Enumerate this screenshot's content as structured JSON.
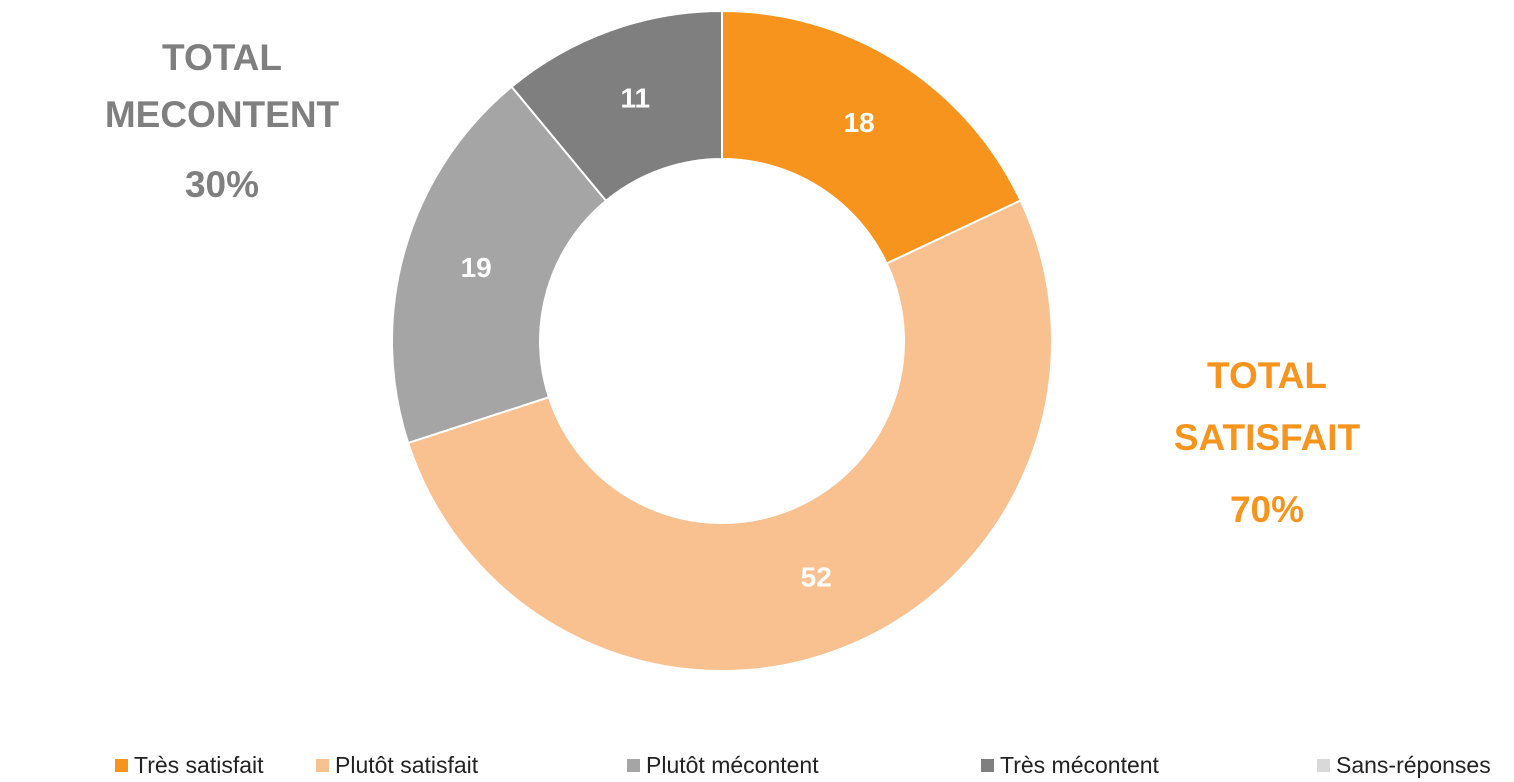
{
  "chart_data": {
    "type": "donut",
    "categories": [
      "Très satisfait",
      "Plutôt satisfait",
      "Plutôt mécontent",
      "Très mécontent",
      "Sans-réponses"
    ],
    "values": [
      18,
      52,
      19,
      11,
      0
    ],
    "colors": [
      "#f7941d",
      "#f9c090",
      "#a5a5a5",
      "#7f7f7f",
      "#d9d9d9"
    ],
    "legend": "bottom",
    "annotations": [
      {
        "lines": [
          "TOTAL",
          "MECONTENT",
          "30%"
        ],
        "color": "#7f7f7f"
      },
      {
        "lines": [
          "TOTAL",
          "SATISFAIT",
          "70%"
        ],
        "color": "#f7941d"
      }
    ]
  }
}
